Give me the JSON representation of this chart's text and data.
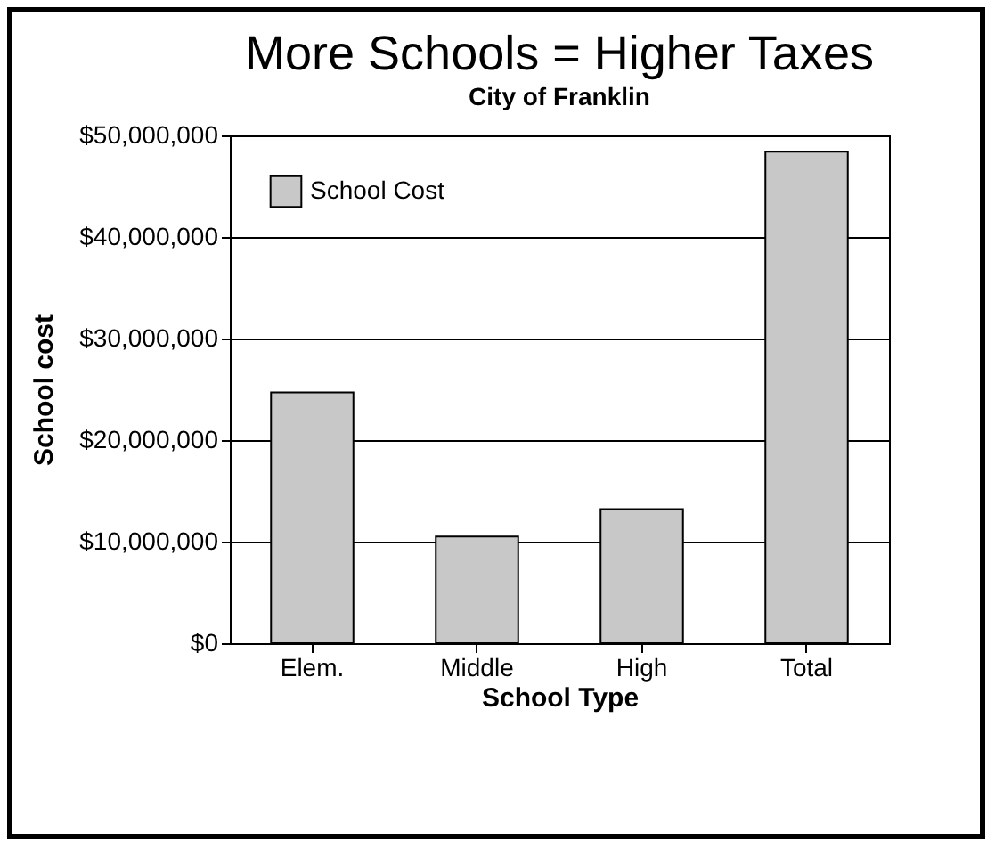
{
  "chart_data": {
    "type": "bar",
    "title": "More Schools = Higher Taxes",
    "subtitle": "City of Franklin",
    "xlabel": "School Type",
    "ylabel": "School cost",
    "categories": [
      "Elem.",
      "Middle",
      "High",
      "Total"
    ],
    "series": [
      {
        "name": "School Cost",
        "color": "#c8c8c8",
        "values": [
          24700000,
          10500000,
          13200000,
          48400000
        ]
      }
    ],
    "ylim": [
      0,
      50000000
    ],
    "yticks": [
      {
        "value": 0,
        "label": "$0"
      },
      {
        "value": 10000000,
        "label": "$10,000,000"
      },
      {
        "value": 20000000,
        "label": "$20,000,000"
      },
      {
        "value": 30000000,
        "label": "$30,000,000"
      },
      {
        "value": 40000000,
        "label": "$40,000,000"
      },
      {
        "value": 50000000,
        "label": "$50,000,000"
      }
    ],
    "grid": "y",
    "legend": "top left"
  }
}
